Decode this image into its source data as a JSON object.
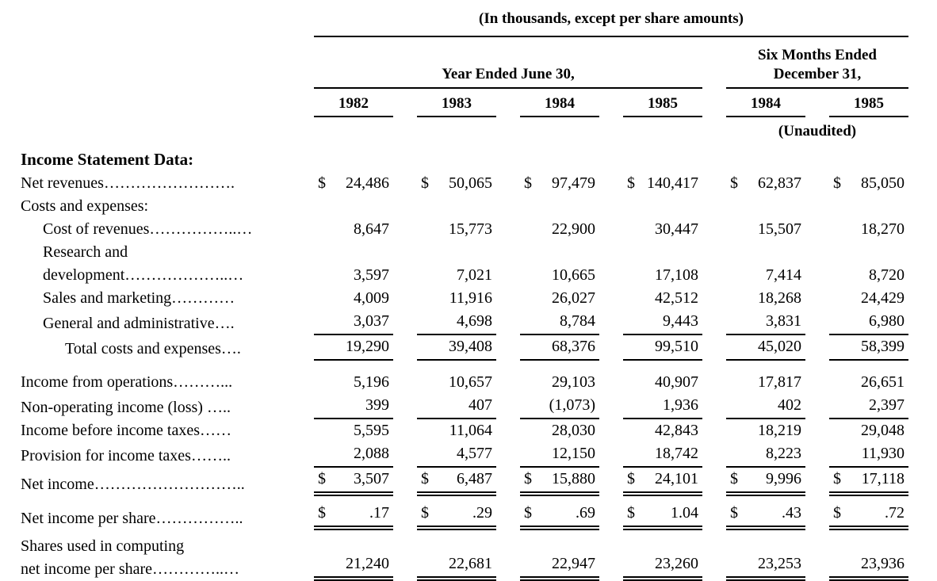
{
  "document": {
    "caption": "(In thousands, except per share amounts)",
    "group_headers": {
      "year_ended": "Year Ended June 30,",
      "six_months_line1": "Six Months Ended",
      "six_months_line2": "December 31,"
    },
    "year_columns": [
      "1982",
      "1983",
      "1984",
      "1985",
      "1984",
      "1985"
    ],
    "unaudited_note": "(Unaudited)",
    "section_title": "Income Statement Data:",
    "rows": [
      {
        "label": "Net revenues…………………….",
        "prefix": "$",
        "values": [
          "24,486",
          "50,065",
          "97,479",
          "140,417",
          "62,837",
          "85,050"
        ]
      },
      {
        "label": "Costs and expenses:",
        "values": []
      },
      {
        "label": "Cost of revenues……………..…",
        "indent": 1,
        "values": [
          "8,647",
          "15,773",
          "22,900",
          "30,447",
          "15,507",
          "18,270"
        ]
      },
      {
        "label_lines": [
          "Research and",
          "development………………..…"
        ],
        "indent": 1,
        "values": [
          "3,597",
          "7,021",
          "10,665",
          "17,108",
          "7,414",
          "8,720"
        ]
      },
      {
        "label": "Sales and marketing…………",
        "indent": 1,
        "values": [
          "4,009",
          "11,916",
          "26,027",
          "42,512",
          "18,268",
          "24,429"
        ]
      },
      {
        "label": "General and administrative….",
        "indent": 1,
        "underline": "single",
        "values": [
          "3,037",
          "4,698",
          "8,784",
          "9,443",
          "3,831",
          "6,980"
        ]
      },
      {
        "label": "Total costs and expenses….",
        "indent": 2,
        "underline": "single",
        "values": [
          "19,290",
          "39,408",
          "68,376",
          "99,510",
          "45,020",
          "58,399"
        ]
      },
      {
        "label": "Income from operations………...",
        "values": [
          "5,196",
          "10,657",
          "29,103",
          "40,907",
          "17,817",
          "26,651"
        ]
      },
      {
        "label": "Non-operating income (loss) …..",
        "underline": "single",
        "values": [
          "399",
          "407",
          "(1,073)",
          "1,936",
          "402",
          "2,397"
        ]
      },
      {
        "label": "Income before income taxes……",
        "values": [
          "5,595",
          "11,064",
          "28,030",
          "42,843",
          "18,219",
          "29,048"
        ]
      },
      {
        "label": "Provision for income taxes……..",
        "underline": "single",
        "values": [
          "2,088",
          "4,577",
          "12,150",
          "18,742",
          "8,223",
          "11,930"
        ]
      },
      {
        "label": "Net income………………………..",
        "prefix": "$",
        "underline": "double",
        "values": [
          "3,507",
          "6,487",
          "15,880",
          "24,101",
          "9,996",
          "17,118"
        ]
      },
      {
        "label": "Net income per share……………..",
        "prefix": "$",
        "underline": "double",
        "values": [
          ".17",
          ".29",
          ".69",
          "1.04",
          ".43",
          ".72"
        ]
      },
      {
        "label_lines": [
          "Shares used in computing",
          "net income per share…………..…"
        ],
        "underline": "double",
        "values": [
          "21,240",
          "22,681",
          "22,947",
          "23,260",
          "23,253",
          "23,936"
        ]
      }
    ]
  }
}
